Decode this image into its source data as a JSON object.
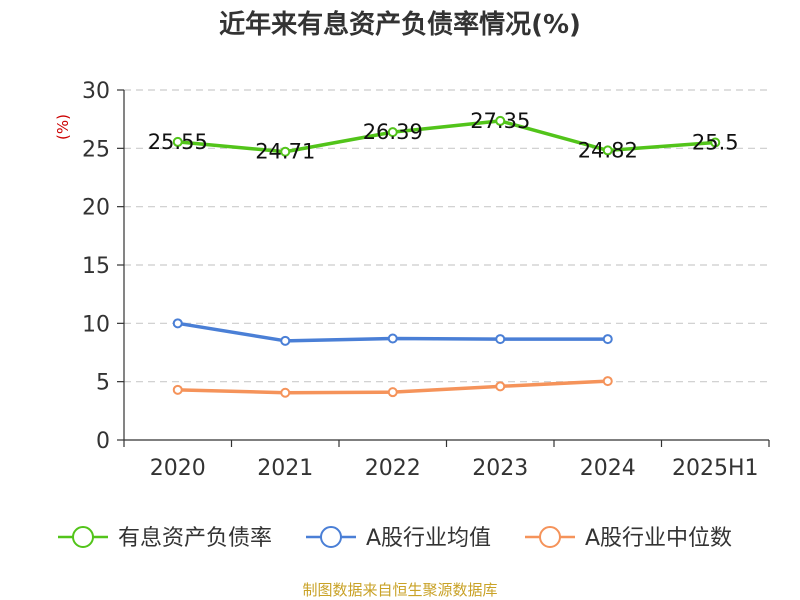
{
  "chart_data": {
    "type": "line",
    "title": "近年来有息资产负债率情况(%)",
    "ylabel": "(%)",
    "categories": [
      "2020",
      "2021",
      "2022",
      "2023",
      "2024",
      "2025H1"
    ],
    "y_ticks": [
      "0",
      "5",
      "10",
      "15",
      "20",
      "25",
      "30"
    ],
    "ylim": [
      0,
      30
    ],
    "grid": true,
    "legend_position": "bottom",
    "series": [
      {
        "name": "有息资产负债率",
        "color": "#52c41a",
        "values": [
          25.55,
          24.71,
          26.39,
          27.35,
          24.82,
          25.5
        ],
        "labels": [
          "25.55",
          "24.71",
          "26.39",
          "27.35",
          "24.82",
          "25.5"
        ]
      },
      {
        "name": "A股行业均值",
        "color": "#4a7fd6",
        "values": [
          10.0,
          8.5,
          8.7,
          8.65,
          8.65,
          null
        ]
      },
      {
        "name": "A股行业中位数",
        "color": "#f5935a",
        "values": [
          4.3,
          4.05,
          4.1,
          4.6,
          5.05,
          null
        ]
      }
    ]
  },
  "footer": {
    "source": "制图数据来自恒生聚源数据库"
  }
}
